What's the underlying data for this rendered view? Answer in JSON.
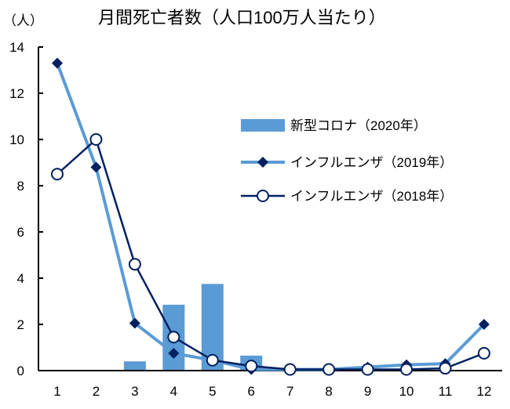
{
  "chart_data": {
    "type": "bar+line",
    "title": "月間死亡者数（人口100万人当たり）",
    "ylabel": "（人）",
    "xlabel": "",
    "ylim": [
      0,
      14
    ],
    "yticks": [
      "0",
      "2",
      "4",
      "6",
      "8",
      "10",
      "12",
      "14"
    ],
    "categories": [
      "1",
      "2",
      "3",
      "4",
      "5",
      "6",
      "7",
      "8",
      "9",
      "10",
      "11",
      "12"
    ],
    "series": [
      {
        "name": "新型コロナ（2020年）",
        "kind": "bar",
        "color": "#5B9BD5",
        "values": [
          null,
          null,
          0.4,
          2.85,
          3.75,
          0.65,
          null,
          null,
          null,
          null,
          null,
          null
        ]
      },
      {
        "name": "インフルエンザ（2019年）",
        "kind": "line-diamond",
        "color": "#5B9BD5",
        "marker_color": "#002060",
        "values": [
          13.3,
          8.8,
          2.05,
          0.75,
          0.45,
          0.05,
          0.05,
          0.05,
          0.15,
          0.25,
          0.3,
          2.0
        ]
      },
      {
        "name": "インフルエンザ（2018年）",
        "kind": "line-circle",
        "color": "#002060",
        "values": [
          8.5,
          10.0,
          4.6,
          1.45,
          0.45,
          0.2,
          0.05,
          0.05,
          0.05,
          0.05,
          0.1,
          0.75
        ]
      }
    ],
    "legend_position": "right-middle",
    "grid": false
  }
}
